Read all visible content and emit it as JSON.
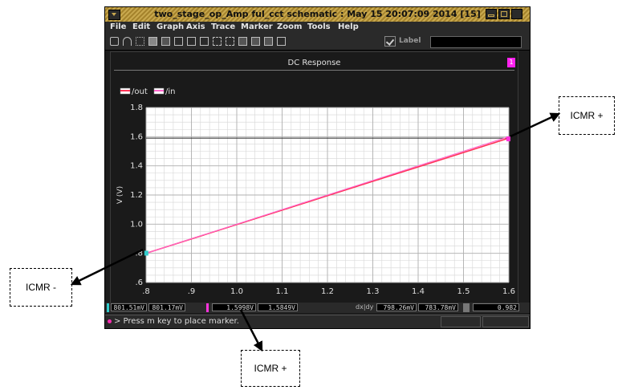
{
  "window": {
    "title": "two_stage_op_Amp ful_cct schematic : May 15 20:07:09 2014 [15]",
    "menu": [
      "File",
      "Edit",
      "Graph",
      "Axis",
      "Trace",
      "Marker",
      "Zoom",
      "Tools",
      "Help"
    ],
    "label_toggle": "Label"
  },
  "statusbar": {
    "m1_x": "801.51mV",
    "m1_y": "801.17mV",
    "m2_x": "1.5998V",
    "m2_y": "1.5849V",
    "delta_label": "dx|dy",
    "dx": "798.26mV",
    "dy": "783.78mV",
    "slope": "0.982"
  },
  "message": "> Press m key to place marker.",
  "callouts": {
    "right": "ICMR +",
    "left": "ICMR -",
    "bottom": "ICMR +"
  },
  "chart_data": {
    "type": "line",
    "title": "DC Response",
    "xlabel": "",
    "ylabel": "V (V)",
    "xlim": [
      0.8,
      1.6
    ],
    "ylim": [
      0.6,
      1.8
    ],
    "x_ticks": [
      ".8",
      ".9",
      "1.0",
      "1.1",
      "1.2",
      "1.3",
      "1.4",
      "1.5",
      "1.6"
    ],
    "x_tick_values": [
      0.8,
      0.9,
      1.0,
      1.1,
      1.2,
      1.3,
      1.4,
      1.5,
      1.6
    ],
    "y_ticks": [
      ".6",
      ".8",
      "1.0",
      "1.2",
      "1.4",
      "1.6",
      "1.8"
    ],
    "y_tick_values": [
      0.6,
      0.8,
      1.0,
      1.2,
      1.4,
      1.6,
      1.8
    ],
    "grid": true,
    "legend_position": "top-left",
    "series": [
      {
        "name": "/out",
        "color": "#ff3355",
        "x": [
          0.8,
          1.2,
          1.6
        ],
        "y": [
          0.8,
          1.195,
          1.59
        ]
      },
      {
        "name": "/in",
        "color": "#ff66cc",
        "x": [
          0.8,
          1.2,
          1.6
        ],
        "y": [
          0.8,
          1.2,
          1.6
        ]
      }
    ],
    "hline": 1.59,
    "markers": [
      {
        "x": 0.8015,
        "y": 0.8012,
        "color": "#33cccc"
      },
      {
        "x": 1.5998,
        "y": 1.5849,
        "color": "#ff33dd"
      }
    ]
  }
}
